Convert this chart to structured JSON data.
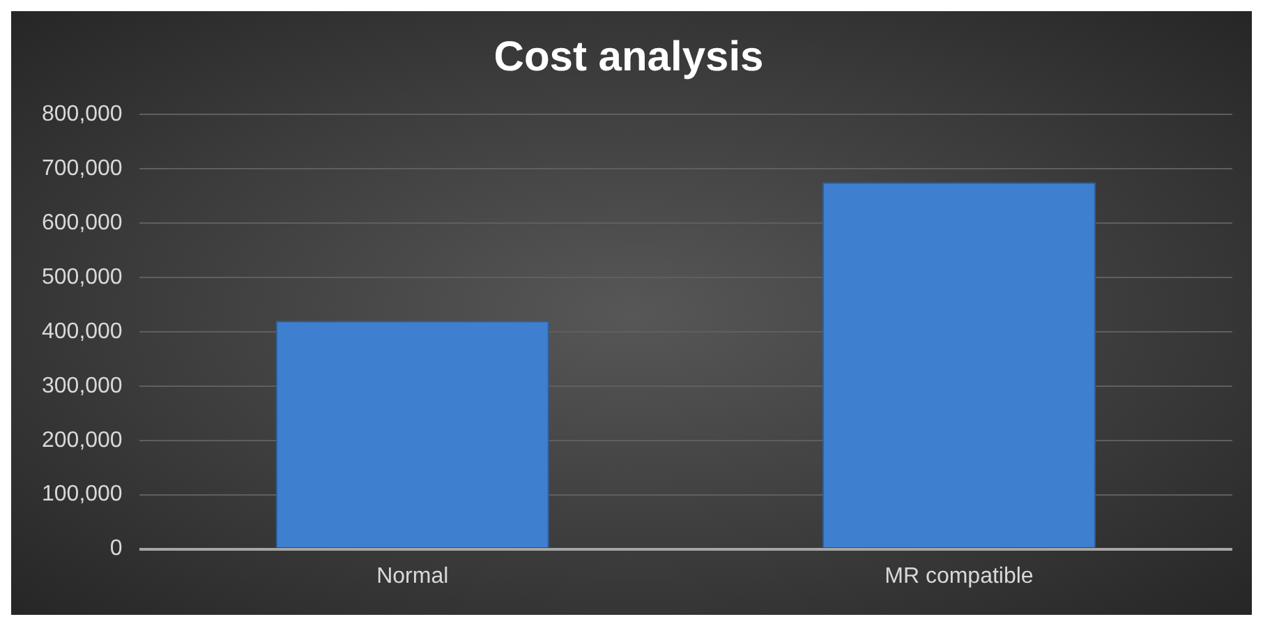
{
  "chart_data": {
    "type": "bar",
    "title": "Cost analysis",
    "categories": [
      "Normal",
      "MR compatible"
    ],
    "values": [
      420000,
      675000
    ],
    "color": "#3f7fd0",
    "ylim": [
      0,
      800000
    ],
    "yticks": [
      {
        "value": 0,
        "label": "0"
      },
      {
        "value": 100000,
        "label": "100,000"
      },
      {
        "value": 200000,
        "label": "200,000"
      },
      {
        "value": 300000,
        "label": "300,000"
      },
      {
        "value": 400000,
        "label": "400,000"
      },
      {
        "value": 500000,
        "label": "500,000"
      },
      {
        "value": 600000,
        "label": "600,000"
      },
      {
        "value": 700000,
        "label": "700,000"
      },
      {
        "value": 800000,
        "label": "800,000"
      }
    ],
    "grid": "y"
  }
}
